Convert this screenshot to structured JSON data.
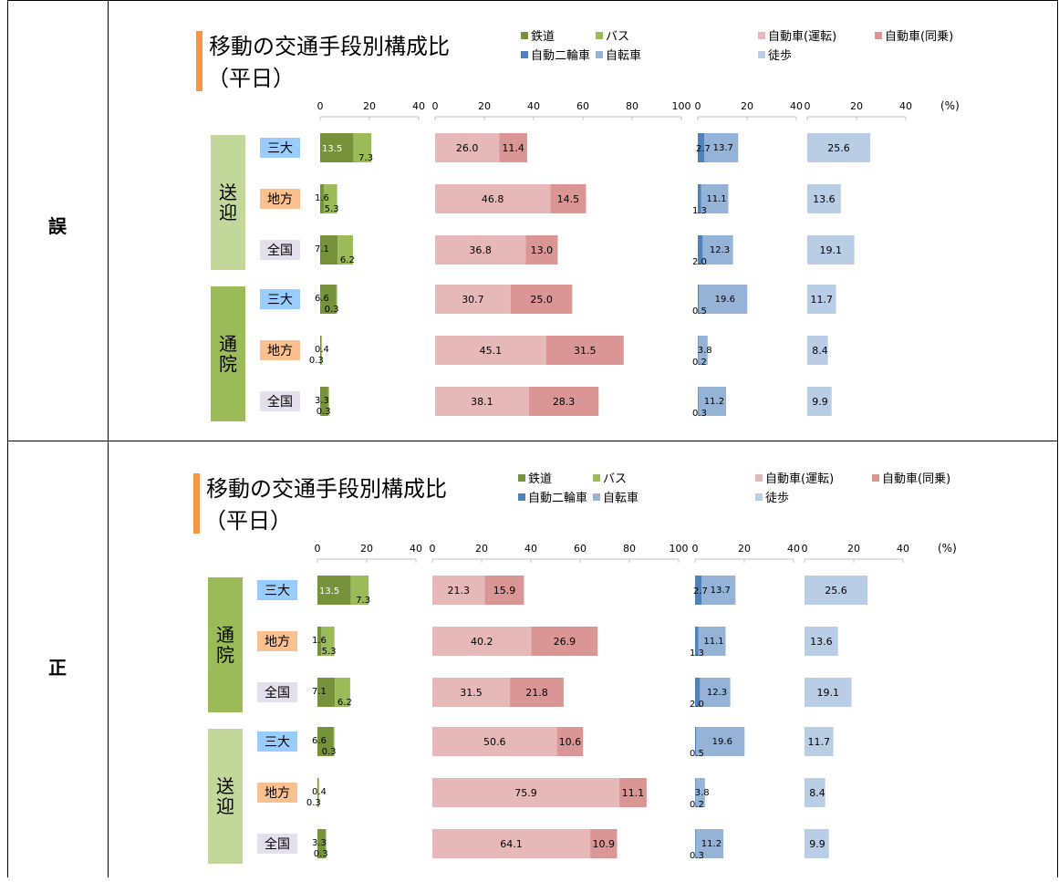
{
  "rows": [
    {
      "label": "誤"
    },
    {
      "label": "正"
    }
  ],
  "chart_data": [
    {
      "type": "bar",
      "title": "移動の交通手段別構成比",
      "subtitle": "（平日）",
      "unit_label": "(%)",
      "legend": [
        {
          "name": "鉄道",
          "color": "#76933c"
        },
        {
          "name": "バス",
          "color": "#9bbb59"
        },
        {
          "name": "自動車(運転)",
          "color": "#e6b9b8"
        },
        {
          "name": "自動車(同乗)",
          "color": "#d99694"
        },
        {
          "name": "自動二輪車",
          "color": "#4f81bd"
        },
        {
          "name": "自転車",
          "color": "#95b3d7"
        },
        {
          "name": "徒歩",
          "color": "#b9cde5"
        }
      ],
      "axes": [
        {
          "ticks": [
            0,
            20,
            40
          ],
          "max": 40
        },
        {
          "ticks": [
            0,
            20,
            40,
            60,
            80,
            100
          ],
          "max": 100
        },
        {
          "ticks": [
            0,
            20,
            40
          ],
          "max": 40
        },
        {
          "ticks": [
            0,
            20,
            40
          ],
          "max": 40
        }
      ],
      "groups": [
        {
          "label": "送迎",
          "color": "#c4d79b",
          "categories": [
            {
              "name": "三大",
              "rail": 13.5,
              "bus": 7.3,
              "car_drive": 26.0,
              "car_passenger": 11.4,
              "motorcycle": 2.7,
              "bicycle": 13.7,
              "walk": 25.6
            },
            {
              "name": "地方",
              "rail": 1.6,
              "bus": 5.3,
              "car_drive": 46.8,
              "car_passenger": 14.5,
              "motorcycle": 1.3,
              "bicycle": 11.1,
              "walk": 13.6
            },
            {
              "name": "全国",
              "rail": 7.1,
              "bus": 6.2,
              "car_drive": 36.8,
              "car_passenger": 13.0,
              "motorcycle": 2.0,
              "bicycle": 12.3,
              "walk": 19.1
            }
          ]
        },
        {
          "label": "通院",
          "color": "#9bbb59",
          "categories": [
            {
              "name": "三大",
              "rail": 6.6,
              "bus": 0.3,
              "car_drive": 30.7,
              "car_passenger": 25.0,
              "motorcycle": 0.5,
              "bicycle": 19.6,
              "walk": 11.7
            },
            {
              "name": "地方",
              "rail": 0.4,
              "bus": 0.3,
              "car_drive": 45.1,
              "car_passenger": 31.5,
              "motorcycle": 0.2,
              "bicycle": 3.8,
              "walk": 8.4
            },
            {
              "name": "全国",
              "rail": 3.3,
              "bus": 0.3,
              "car_drive": 38.1,
              "car_passenger": 28.3,
              "motorcycle": 0.3,
              "bicycle": 11.2,
              "walk": 9.9
            }
          ]
        }
      ]
    },
    {
      "type": "bar",
      "title": "移動の交通手段別構成比",
      "subtitle": "（平日）",
      "unit_label": "(%)",
      "legend": [
        {
          "name": "鉄道",
          "color": "#76933c"
        },
        {
          "name": "バス",
          "color": "#9bbb59"
        },
        {
          "name": "自動車(運転)",
          "color": "#e6b9b8"
        },
        {
          "name": "自動車(同乗)",
          "color": "#d99694"
        },
        {
          "name": "自動二輪車",
          "color": "#4f81bd"
        },
        {
          "name": "自転車",
          "color": "#95b3d7"
        },
        {
          "name": "徒歩",
          "color": "#b9cde5"
        }
      ],
      "axes": [
        {
          "ticks": [
            0,
            20,
            40
          ],
          "max": 40
        },
        {
          "ticks": [
            0,
            20,
            40,
            60,
            80,
            100
          ],
          "max": 100
        },
        {
          "ticks": [
            0,
            20,
            40
          ],
          "max": 40
        },
        {
          "ticks": [
            0,
            20,
            40
          ],
          "max": 40
        }
      ],
      "groups": [
        {
          "label": "通院",
          "color": "#9bbb59",
          "categories": [
            {
              "name": "三大",
              "rail": 13.5,
              "bus": 7.3,
              "car_drive": 21.3,
              "car_passenger": 15.9,
              "motorcycle": 2.7,
              "bicycle": 13.7,
              "walk": 25.6
            },
            {
              "name": "地方",
              "rail": 1.6,
              "bus": 5.3,
              "car_drive": 40.2,
              "car_passenger": 26.9,
              "motorcycle": 1.3,
              "bicycle": 11.1,
              "walk": 13.6
            },
            {
              "name": "全国",
              "rail": 7.1,
              "bus": 6.2,
              "car_drive": 31.5,
              "car_passenger": 21.8,
              "motorcycle": 2.0,
              "bicycle": 12.3,
              "walk": 19.1
            }
          ]
        },
        {
          "label": "送迎",
          "color": "#c4d79b",
          "categories": [
            {
              "name": "三大",
              "rail": 6.6,
              "bus": 0.3,
              "car_drive": 50.6,
              "car_passenger": 10.6,
              "motorcycle": 0.5,
              "bicycle": 19.6,
              "walk": 11.7
            },
            {
              "name": "地方",
              "rail": 0.4,
              "bus": 0.3,
              "car_drive": 75.9,
              "car_passenger": 11.1,
              "motorcycle": 0.2,
              "bicycle": 3.8,
              "walk": 8.4
            },
            {
              "name": "全国",
              "rail": 3.3,
              "bus": 0.3,
              "car_drive": 64.1,
              "car_passenger": 10.9,
              "motorcycle": 0.3,
              "bicycle": 11.2,
              "walk": 9.9
            }
          ]
        }
      ]
    }
  ]
}
